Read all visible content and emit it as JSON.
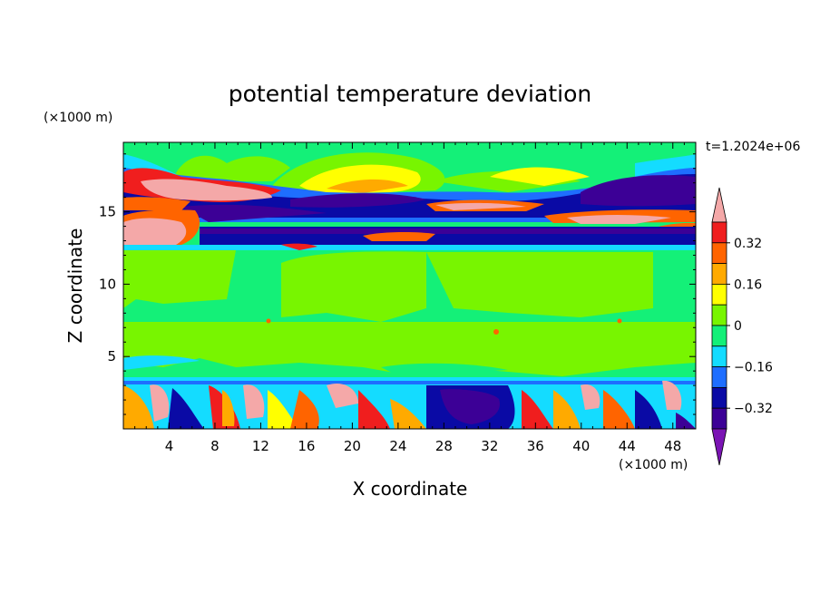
{
  "chart_data": {
    "type": "heatmap",
    "subtype": "filled-contour",
    "title": "potential temperature deviation",
    "xlabel": "X coordinate",
    "ylabel": "Z coordinate",
    "x_unit_label": "(×1000 m)",
    "y_unit_label": "(×1000 m)",
    "time_label": "t=1.2024e+06",
    "xlim": [
      0,
      50
    ],
    "ylim": [
      0,
      19.8
    ],
    "x_ticks": [
      4,
      8,
      12,
      16,
      20,
      24,
      28,
      32,
      36,
      40,
      44,
      48
    ],
    "y_ticks": [
      5,
      10,
      15
    ],
    "colorbar": {
      "levels": [
        -0.4,
        -0.32,
        -0.24,
        -0.16,
        -0.08,
        0,
        0.08,
        0.16,
        0.24,
        0.32,
        0.4
      ],
      "tick_labels": [
        "0.32",
        "0.16",
        "0",
        "−0.16",
        "−0.32"
      ],
      "tick_values": [
        0.32,
        0.16,
        0,
        -0.16,
        -0.32
      ],
      "colors": [
        "#7b14b4",
        "#3c0096",
        "#0a0aa5",
        "#1e6eff",
        "#14dcff",
        "#14f078",
        "#78f500",
        "#ffff00",
        "#ffaa00",
        "#ff6400",
        "#f01e1e",
        "#f4a8a8"
      ],
      "extend": "both"
    },
    "layers": [
      {
        "z_range": [
          0,
          3.6
        ],
        "description": "turbulent mixed layer with strong positive/negative anomalies"
      },
      {
        "z_range": [
          3.6,
          12.6
        ],
        "description": "near-zero deviation (0 to 0.08) interior"
      },
      {
        "z_range": [
          12.6,
          14.2
        ],
        "description": "strong negative band (about -0.32)"
      },
      {
        "z_range": [
          14.2,
          17.5
        ],
        "description": "alternating strong positive and negative anomalies"
      },
      {
        "z_range": [
          17.5,
          19.8
        ],
        "description": "near-zero with weak positive plumes near top"
      }
    ]
  }
}
